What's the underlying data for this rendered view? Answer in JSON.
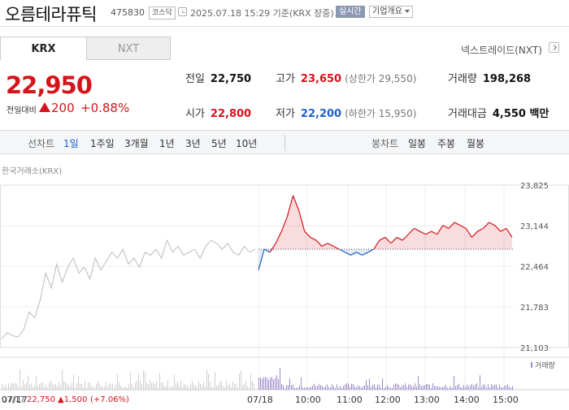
{
  "header": {
    "name": "오름테라퓨틱",
    "code": "475830",
    "market_badge": "코스닥",
    "timestamp": "2025.07.18 15:29 기준(KRX 장중)",
    "realtime_badge": "실시간",
    "company_info": "기업개요"
  },
  "tabs": {
    "krx": "KRX",
    "nxt": "NXT"
  },
  "nxt_link": "넥스트레이드(NXT)",
  "price": {
    "current": "22,950",
    "change_label": "전일대비",
    "change": "200",
    "change_pct": "+0.88%"
  },
  "stats": {
    "prev_close_label": "전일",
    "prev_close": "22,750",
    "high_label": "고가",
    "high": "23,650",
    "upper_limit": "(상한가 29,550)",
    "volume_label": "거래량",
    "volume": "198,268",
    "open_label": "시가",
    "open": "22,800",
    "low_label": "저가",
    "low": "22,200",
    "lower_limit": "(하한가 15,950)",
    "trade_value_label": "거래대금",
    "trade_value": "4,550 백만"
  },
  "periods": {
    "line_label": "선차트",
    "line_items": [
      "1일",
      "1주일",
      "3개월",
      "1년",
      "3년",
      "5년",
      "10년"
    ],
    "candle_label": "봉차트",
    "candle_items": [
      "일봉",
      "주봉",
      "월봉"
    ]
  },
  "exchange_label": "한국거래소(KRX)",
  "chart_data": {
    "type": "line",
    "y_ticks": [
      "23,825",
      "23,144",
      "22,464",
      "21,783",
      "21,103"
    ],
    "ylim": [
      21103,
      23825
    ],
    "baseline": 22750,
    "x_ticks": [
      "07/17",
      "07/18",
      "10:00",
      "11:00",
      "12:00",
      "13:00",
      "14:00",
      "15:00"
    ],
    "volume_label": "거래량",
    "prev_day_summary": {
      "date": "07/17",
      "close": "22,750",
      "change": "▲1,500",
      "change_pct": "(+7.06%)"
    },
    "prev_day_series": [
      21250,
      21350,
      21300,
      21280,
      21400,
      21700,
      21600,
      21900,
      22350,
      22100,
      22500,
      22200,
      22450,
      22600,
      22350,
      22450,
      22250,
      22600,
      22400,
      22550,
      22700,
      22600,
      22750,
      22500,
      22600,
      22450,
      22700,
      22650,
      22750,
      22600,
      22900,
      22700,
      22800,
      22650,
      22700,
      22750,
      22600,
      22800,
      22900,
      22850,
      22750,
      22850,
      22700,
      22650,
      22800,
      22700,
      22750
    ],
    "today_series": [
      22400,
      22750,
      22700,
      22850,
      23050,
      23300,
      23650,
      23400,
      23050,
      22950,
      22900,
      22800,
      22850,
      22800,
      22750,
      22700,
      22650,
      22700,
      22650,
      22700,
      22750,
      22900,
      22950,
      22850,
      22950,
      22900,
      23000,
      23100,
      23050,
      23000,
      23050,
      23000,
      23150,
      23100,
      23200,
      23150,
      23100,
      22950,
      23050,
      23100,
      23200,
      23150,
      23050,
      23100,
      22950
    ]
  },
  "colors": {
    "up": "#d6141b",
    "down": "#1d62c7",
    "prev": "#bcbcbc"
  }
}
